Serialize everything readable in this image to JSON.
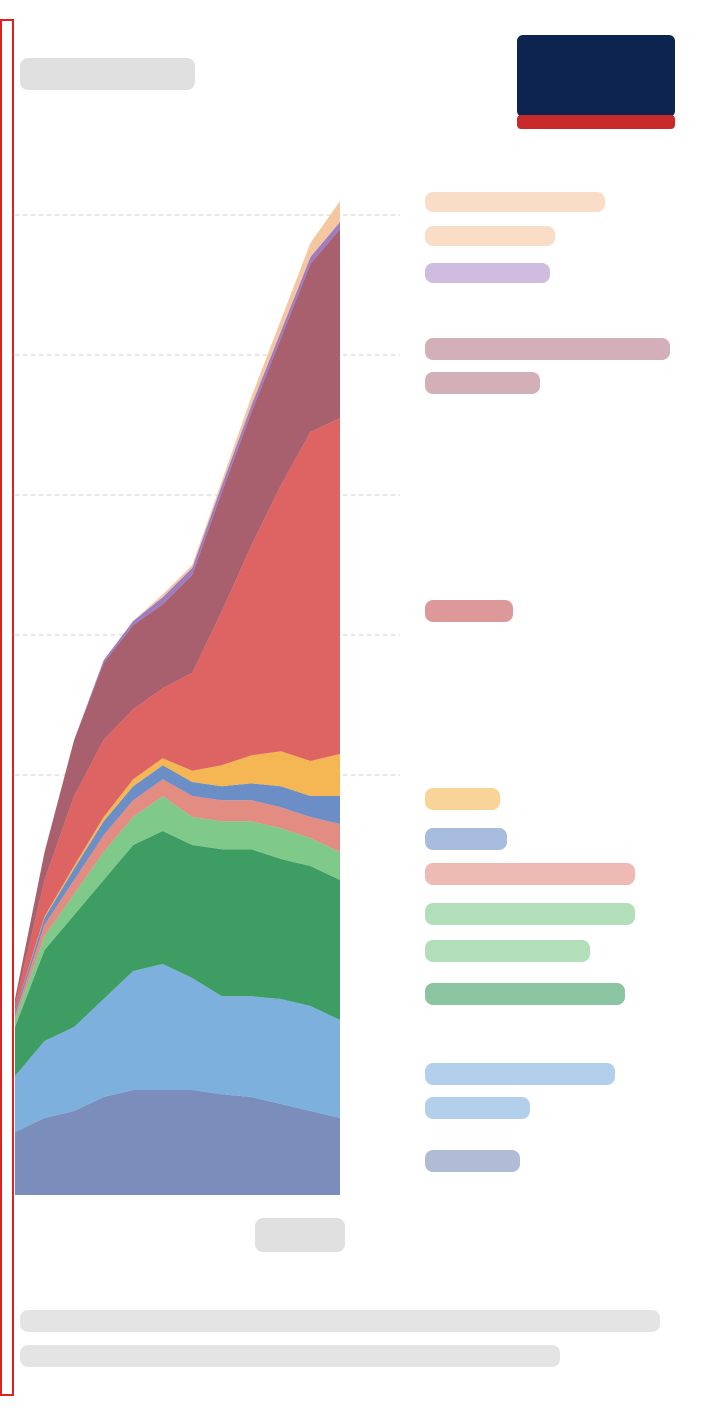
{
  "chart_data": {
    "type": "stacked_area",
    "categories": [
      null,
      null,
      null,
      null,
      null,
      null,
      null,
      null,
      null,
      null,
      null,
      null
    ],
    "ylim": [
      0,
      8.5
    ],
    "yticks": [
      3,
      4,
      5,
      6,
      7
    ],
    "grid": true,
    "series": [
      {
        "color": "#7b8dbb",
        "values": [
          0.45,
          0.55,
          0.6,
          0.7,
          0.75,
          0.75,
          0.75,
          0.72,
          0.7,
          0.65,
          0.6,
          0.55
        ]
      },
      {
        "color": "#7eb0de",
        "values": [
          0.4,
          0.55,
          0.6,
          0.7,
          0.85,
          0.9,
          0.8,
          0.7,
          0.72,
          0.75,
          0.75,
          0.7
        ]
      },
      {
        "color": "#3e9d63",
        "values": [
          0.35,
          0.65,
          0.8,
          0.85,
          0.9,
          0.95,
          0.95,
          1.05,
          1.05,
          1.0,
          1.0,
          1.0
        ]
      },
      {
        "color": "#7fca8b",
        "values": [
          0.05,
          0.1,
          0.15,
          0.2,
          0.2,
          0.25,
          0.2,
          0.2,
          0.2,
          0.22,
          0.2,
          0.2
        ]
      },
      {
        "color": "#e28c82",
        "values": [
          0.03,
          0.08,
          0.1,
          0.12,
          0.12,
          0.12,
          0.15,
          0.15,
          0.15,
          0.15,
          0.15,
          0.2
        ]
      },
      {
        "color": "#6b8ec6",
        "values": [
          0.03,
          0.05,
          0.08,
          0.1,
          0.1,
          0.1,
          0.1,
          0.1,
          0.12,
          0.15,
          0.15,
          0.2
        ]
      },
      {
        "color": "#f4b753",
        "values": [
          0,
          0.01,
          0.02,
          0.03,
          0.05,
          0.05,
          0.08,
          0.15,
          0.2,
          0.25,
          0.25,
          0.3
        ]
      },
      {
        "color": "#de6464",
        "values": [
          0.05,
          0.26,
          0.5,
          0.55,
          0.5,
          0.5,
          0.7,
          1.1,
          1.5,
          1.9,
          2.35,
          2.4
        ]
      },
      {
        "color": "#a8606f",
        "values": [
          0.04,
          0.2,
          0.4,
          0.55,
          0.6,
          0.6,
          0.7,
          0.85,
          0.95,
          1.05,
          1.2,
          1.35
        ]
      },
      {
        "color": "#9f7cbf",
        "values": [
          0,
          0,
          0,
          0.02,
          0.03,
          0.05,
          0.05,
          0.05,
          0.05,
          0.05,
          0.05,
          0.05
        ]
      },
      {
        "color": "#f5c7a0",
        "values": [
          0,
          0,
          0,
          0,
          0,
          0.02,
          0.02,
          0.03,
          0.06,
          0.08,
          0.1,
          0.15
        ]
      }
    ]
  }
}
